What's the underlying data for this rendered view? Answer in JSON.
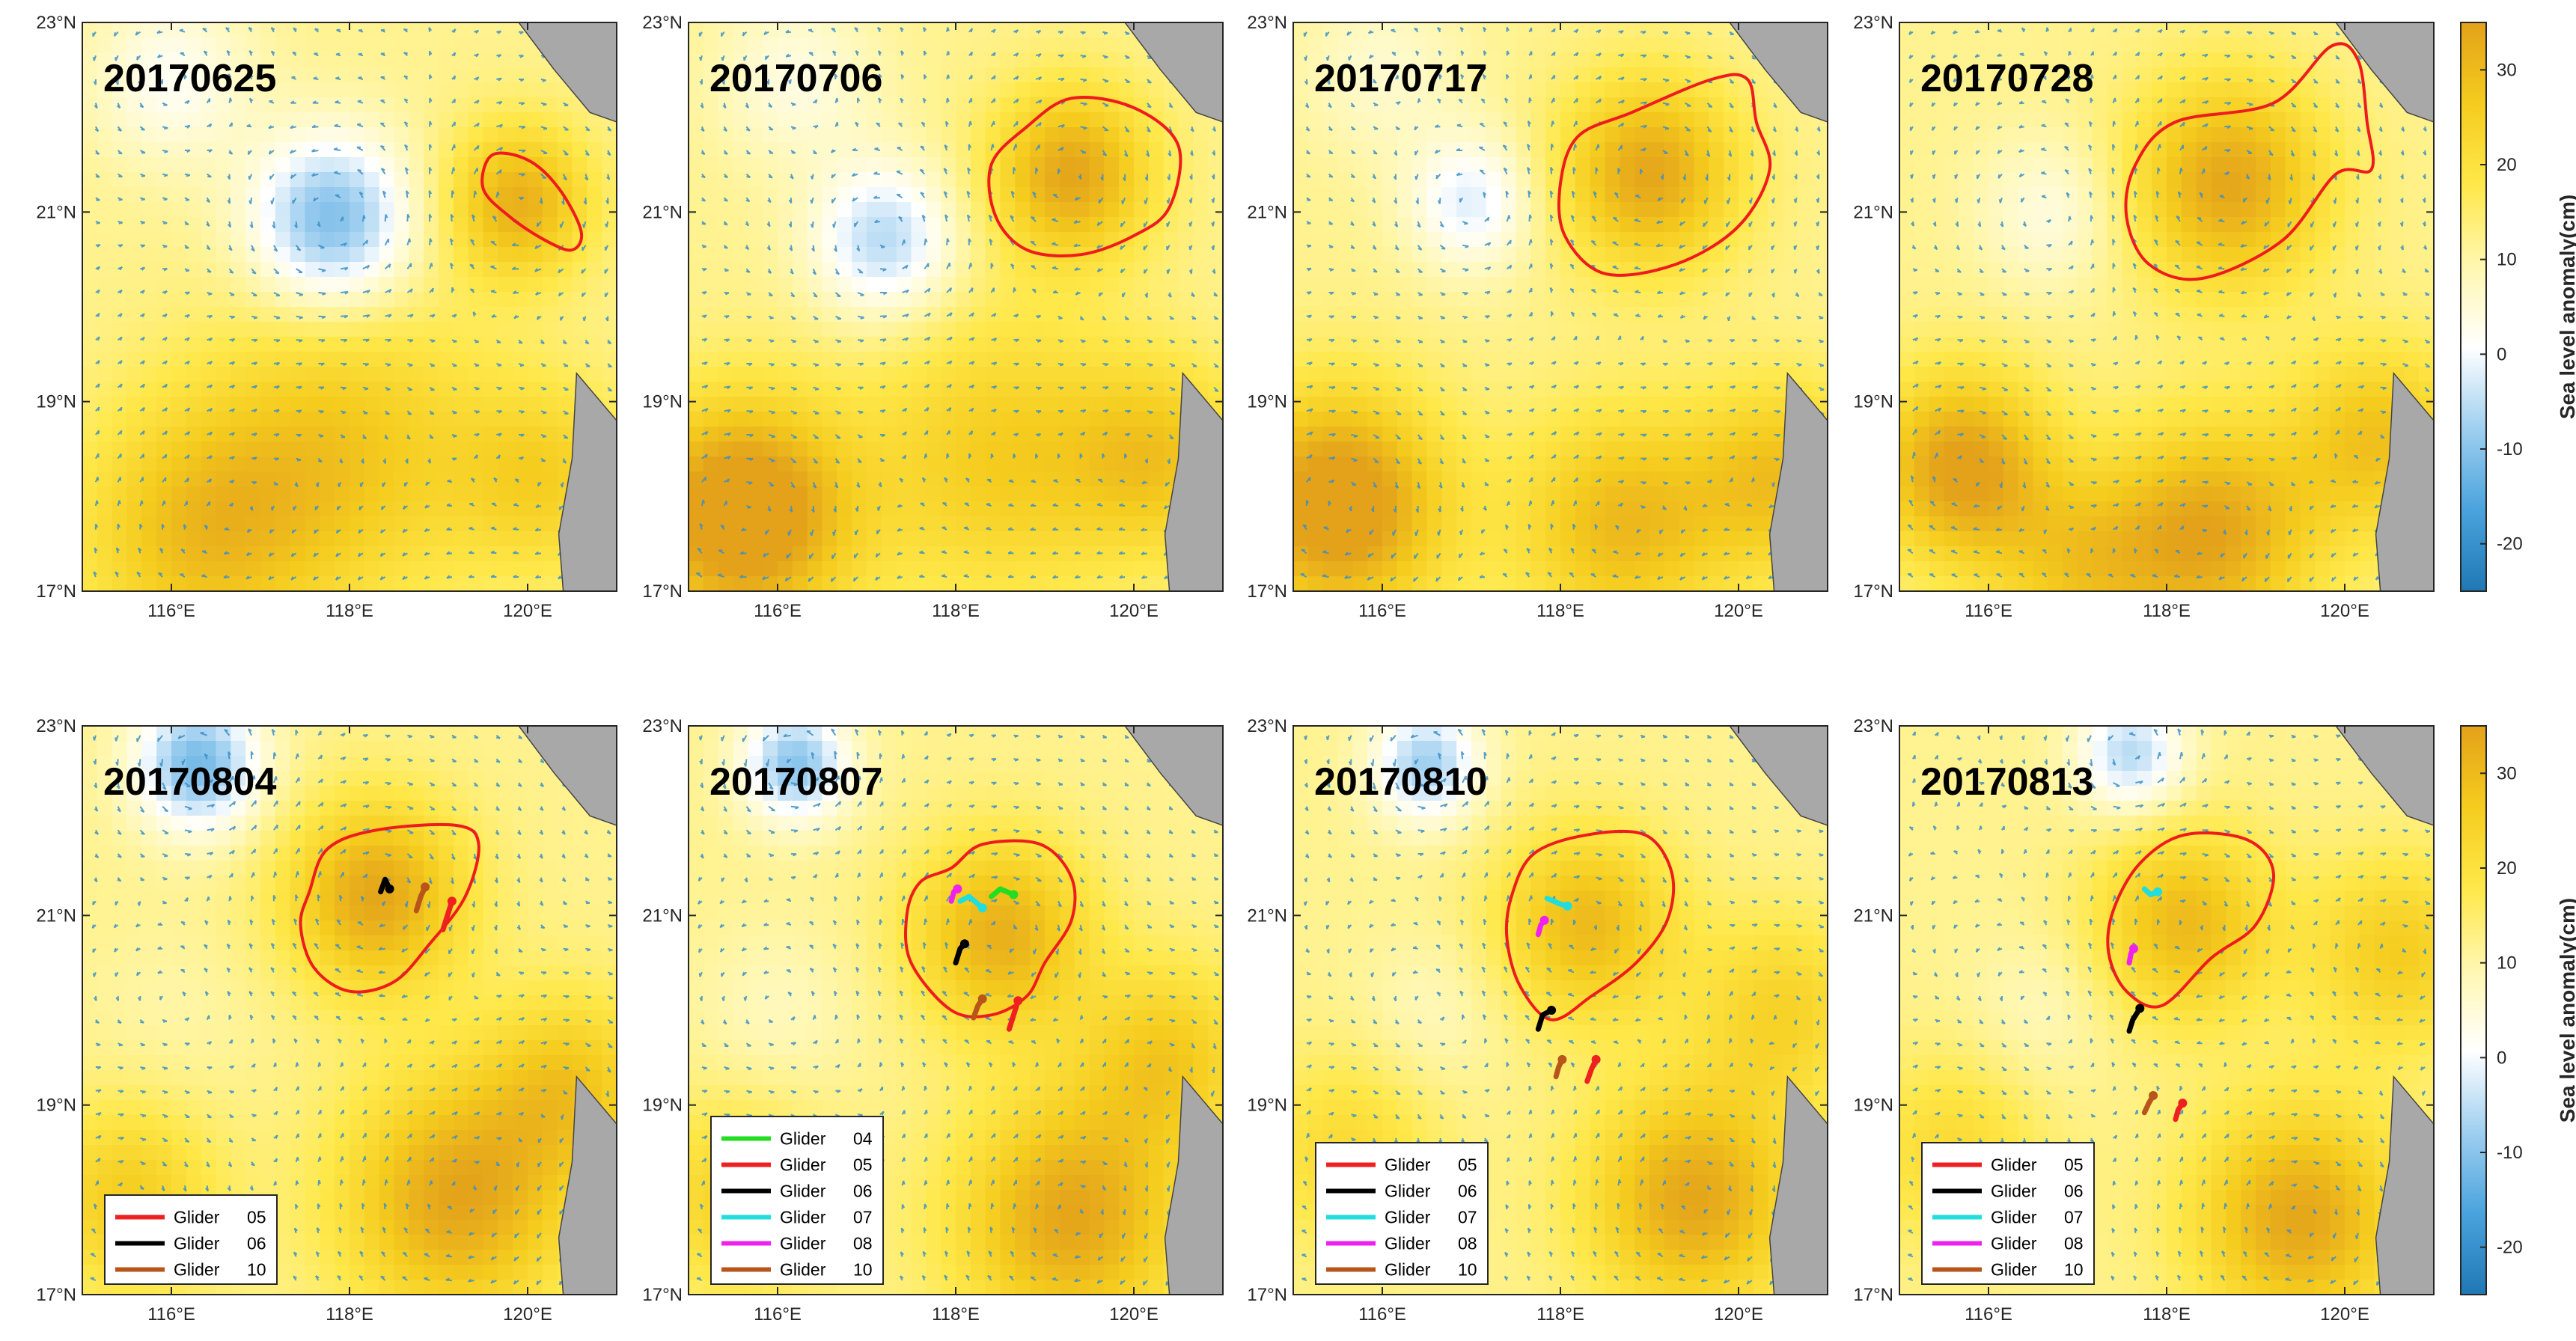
{
  "chart_data": {
    "type": "heatmap",
    "common": {
      "xlim": [
        115,
        121
      ],
      "ylim": [
        17,
        23
      ],
      "x_ticks": [
        116,
        118,
        120
      ],
      "x_tick_labels": [
        "116°E",
        "118°E",
        "120°E"
      ],
      "y_ticks": [
        17,
        19,
        21,
        23
      ],
      "y_tick_labels": [
        "17°N",
        "19°N",
        "21°N",
        "23°N"
      ]
    },
    "colorbar": {
      "label": "Sea level anomaly(cm)",
      "range": [
        -25,
        35
      ],
      "ticks": [
        -20,
        -10,
        0,
        10,
        20,
        30
      ],
      "tick_labels": [
        "-20",
        "-10",
        "0",
        "10",
        "20",
        "30"
      ],
      "colormap": [
        "#1f77b4",
        "#4aa3dd",
        "#9fcff0",
        "#ffffff",
        "#fff7b0",
        "#ffe84a",
        "#f5cc1e",
        "#e3a21a"
      ]
    },
    "glider_colors": {
      "04": "#22dd22",
      "05": "#ee2020",
      "06": "#000000",
      "07": "#22dddd",
      "08": "#ee22ee",
      "10": "#b8551a"
    },
    "legend_prefix": "Glider",
    "panels": [
      {
        "date": "20170625",
        "legend": [],
        "eddy_contour": [
          [
            119.6,
            21.6
          ],
          [
            120.0,
            21.55
          ],
          [
            120.35,
            21.25
          ],
          [
            120.6,
            20.8
          ],
          [
            120.5,
            20.6
          ],
          [
            120.2,
            20.7
          ],
          [
            119.8,
            20.95
          ],
          [
            119.5,
            21.25
          ]
        ],
        "gliders": []
      },
      {
        "date": "20170706",
        "legend": [],
        "eddy_contour": [
          [
            118.4,
            21.5
          ],
          [
            118.8,
            21.9
          ],
          [
            119.3,
            22.2
          ],
          [
            120.0,
            22.1
          ],
          [
            120.5,
            21.7
          ],
          [
            120.4,
            21.05
          ],
          [
            120.0,
            20.75
          ],
          [
            119.4,
            20.55
          ],
          [
            118.8,
            20.6
          ],
          [
            118.45,
            20.95
          ]
        ],
        "gliders": []
      },
      {
        "date": "20170717",
        "legend": [],
        "eddy_contour": [
          [
            118.2,
            21.8
          ],
          [
            118.8,
            22.05
          ],
          [
            119.7,
            22.4
          ],
          [
            120.1,
            22.4
          ],
          [
            120.2,
            21.95
          ],
          [
            120.35,
            21.45
          ],
          [
            120.0,
            20.85
          ],
          [
            119.3,
            20.45
          ],
          [
            118.5,
            20.35
          ],
          [
            118.05,
            20.75
          ],
          [
            118.0,
            21.3
          ]
        ],
        "gliders": []
      },
      {
        "date": "20170728",
        "legend": [],
        "eddy_contour": [
          [
            117.65,
            21.5
          ],
          [
            118.1,
            21.95
          ],
          [
            119.2,
            22.15
          ],
          [
            119.85,
            22.75
          ],
          [
            120.15,
            22.6
          ],
          [
            120.25,
            21.95
          ],
          [
            120.3,
            21.45
          ],
          [
            119.9,
            21.4
          ],
          [
            119.3,
            20.7
          ],
          [
            118.4,
            20.3
          ],
          [
            117.8,
            20.45
          ],
          [
            117.55,
            20.95
          ]
        ],
        "gliders": []
      },
      {
        "date": "20170804",
        "legend": [
          "05",
          "06",
          "10"
        ],
        "eddy_contour": [
          [
            117.55,
            21.25
          ],
          [
            117.75,
            21.7
          ],
          [
            118.3,
            21.9
          ],
          [
            119.2,
            21.95
          ],
          [
            119.45,
            21.75
          ],
          [
            119.3,
            21.2
          ],
          [
            118.9,
            20.7
          ],
          [
            118.5,
            20.3
          ],
          [
            118.0,
            20.2
          ],
          [
            117.6,
            20.45
          ],
          [
            117.45,
            20.9
          ]
        ],
        "gliders": [
          {
            "id": "06",
            "path": [
              [
                118.35,
                21.25
              ],
              [
                118.4,
                21.38
              ],
              [
                118.45,
                21.28
              ]
            ]
          },
          {
            "id": "10",
            "path": [
              [
                118.75,
                21.05
              ],
              [
                118.8,
                21.2
              ],
              [
                118.85,
                21.3
              ]
            ]
          },
          {
            "id": "05",
            "path": [
              [
                119.05,
                20.85
              ],
              [
                119.1,
                21.0
              ],
              [
                119.15,
                21.15
              ]
            ]
          }
        ]
      },
      {
        "date": "20170807",
        "legend": [
          "04",
          "05",
          "06",
          "07",
          "08",
          "10"
        ],
        "eddy_contour": [
          [
            117.95,
            21.5
          ],
          [
            118.3,
            21.75
          ],
          [
            118.95,
            21.75
          ],
          [
            119.3,
            21.4
          ],
          [
            119.3,
            20.95
          ],
          [
            119.0,
            20.5
          ],
          [
            118.8,
            20.15
          ],
          [
            118.4,
            19.95
          ],
          [
            117.95,
            20.0
          ],
          [
            117.5,
            20.5
          ],
          [
            117.45,
            21.0
          ],
          [
            117.6,
            21.35
          ]
        ],
        "gliders": [
          {
            "id": "04",
            "path": [
              [
                118.4,
                21.2
              ],
              [
                118.5,
                21.28
              ],
              [
                118.65,
                21.22
              ]
            ]
          },
          {
            "id": "08",
            "path": [
              [
                117.95,
                21.15
              ],
              [
                117.98,
                21.25
              ],
              [
                118.02,
                21.28
              ]
            ]
          },
          {
            "id": "07",
            "path": [
              [
                118.05,
                21.15
              ],
              [
                118.15,
                21.2
              ],
              [
                118.3,
                21.08
              ]
            ]
          },
          {
            "id": "06",
            "path": [
              [
                118.0,
                20.5
              ],
              [
                118.05,
                20.65
              ],
              [
                118.1,
                20.7
              ]
            ]
          },
          {
            "id": "10",
            "path": [
              [
                118.2,
                19.92
              ],
              [
                118.25,
                20.05
              ],
              [
                118.3,
                20.12
              ]
            ]
          },
          {
            "id": "05",
            "path": [
              [
                118.6,
                19.8
              ],
              [
                118.65,
                19.95
              ],
              [
                118.7,
                20.1
              ]
            ]
          }
        ]
      },
      {
        "date": "20170810",
        "legend": [
          "05",
          "06",
          "07",
          "08",
          "10"
        ],
        "eddy_contour": [
          [
            117.45,
            21.2
          ],
          [
            117.7,
            21.65
          ],
          [
            118.3,
            21.85
          ],
          [
            118.95,
            21.85
          ],
          [
            119.25,
            21.45
          ],
          [
            119.2,
            20.95
          ],
          [
            118.85,
            20.5
          ],
          [
            118.35,
            20.15
          ],
          [
            117.9,
            19.9
          ],
          [
            117.55,
            20.25
          ],
          [
            117.4,
            20.75
          ]
        ],
        "gliders": [
          {
            "id": "07",
            "path": [
              [
                117.85,
                21.18
              ],
              [
                118.0,
                21.12
              ],
              [
                118.08,
                21.1
              ]
            ]
          },
          {
            "id": "08",
            "path": [
              [
                117.75,
                20.8
              ],
              [
                117.78,
                20.9
              ],
              [
                117.82,
                20.95
              ]
            ]
          },
          {
            "id": "06",
            "path": [
              [
                117.75,
                19.8
              ],
              [
                117.8,
                19.95
              ],
              [
                117.9,
                20.0
              ]
            ]
          },
          {
            "id": "10",
            "path": [
              [
                117.95,
                19.3
              ],
              [
                117.98,
                19.4
              ],
              [
                118.02,
                19.48
              ]
            ]
          },
          {
            "id": "05",
            "path": [
              [
                118.3,
                19.25
              ],
              [
                118.35,
                19.38
              ],
              [
                118.4,
                19.48
              ]
            ]
          }
        ]
      },
      {
        "date": "20170813",
        "legend": [
          "05",
          "06",
          "07",
          "08",
          "10"
        ],
        "eddy_contour": [
          [
            117.4,
            21.05
          ],
          [
            117.7,
            21.55
          ],
          [
            118.2,
            21.85
          ],
          [
            118.9,
            21.8
          ],
          [
            119.2,
            21.45
          ],
          [
            119.0,
            20.9
          ],
          [
            118.5,
            20.55
          ],
          [
            117.95,
            20.05
          ],
          [
            117.55,
            20.2
          ],
          [
            117.35,
            20.6
          ]
        ],
        "gliders": [
          {
            "id": "07",
            "path": [
              [
                117.75,
                21.28
              ],
              [
                117.82,
                21.22
              ],
              [
                117.9,
                21.25
              ]
            ]
          },
          {
            "id": "08",
            "path": [
              [
                117.58,
                20.5
              ],
              [
                117.6,
                20.6
              ],
              [
                117.63,
                20.65
              ]
            ]
          },
          {
            "id": "06",
            "path": [
              [
                117.58,
                19.78
              ],
              [
                117.62,
                19.9
              ],
              [
                117.7,
                20.02
              ]
            ]
          },
          {
            "id": "10",
            "path": [
              [
                117.75,
                18.92
              ],
              [
                117.8,
                19.02
              ],
              [
                117.85,
                19.1
              ]
            ]
          },
          {
            "id": "05",
            "path": [
              [
                118.1,
                18.85
              ],
              [
                118.13,
                18.95
              ],
              [
                118.18,
                19.02
              ]
            ]
          }
        ]
      }
    ]
  }
}
